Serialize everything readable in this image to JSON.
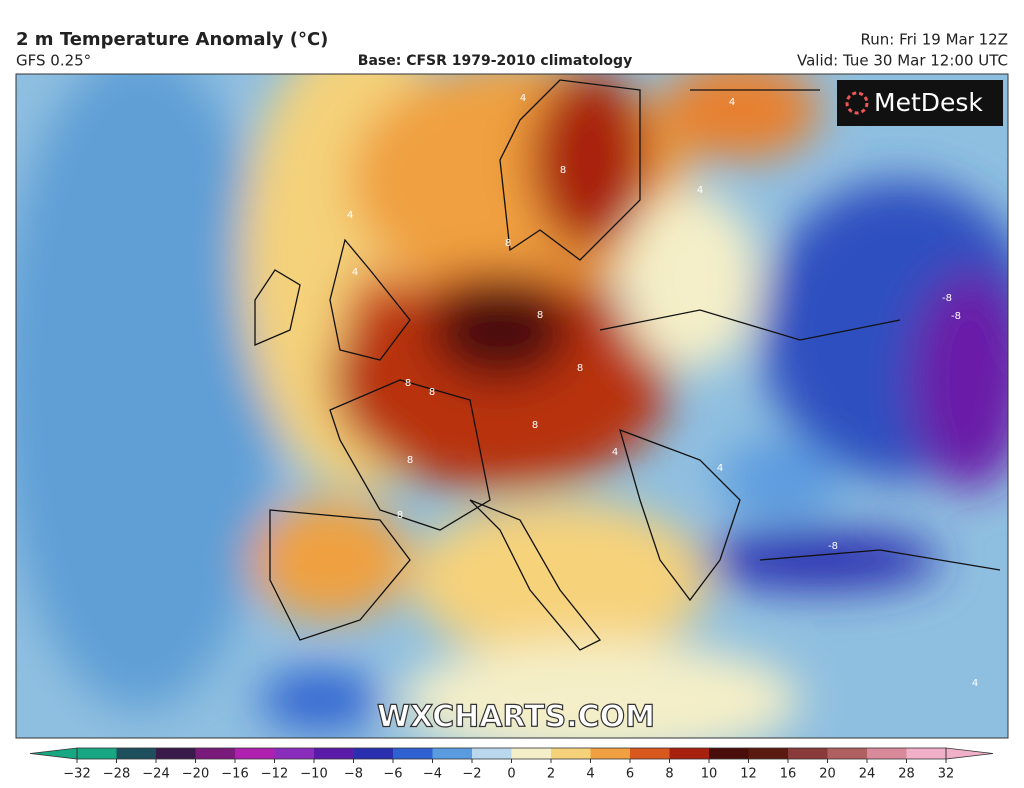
{
  "header": {
    "title": "2 m Temperature Anomaly (°C)",
    "model": "GFS 0.25°",
    "base": "Base: CFSR 1979-2010 climatology",
    "run": "Run: Fri 19 Mar 12Z",
    "valid": "Valid: Tue 30 Mar 12:00 UTC"
  },
  "map": {
    "logo": "MetDesk",
    "watermark": "WXCHARTS.COM",
    "contour_labels": [
      "4",
      "4",
      "4",
      "8",
      "4",
      "4",
      "8",
      "8",
      "8",
      "8",
      "8",
      "8",
      "8",
      "-8",
      "-8",
      "4",
      "4",
      "8",
      "-8",
      "4"
    ]
  },
  "colorbar": {
    "ticks": [
      {
        "value": -32,
        "label": "−32"
      },
      {
        "value": -28,
        "label": "−28"
      },
      {
        "value": -24,
        "label": "−24"
      },
      {
        "value": -20,
        "label": "−20"
      },
      {
        "value": -16,
        "label": "−16"
      },
      {
        "value": -12,
        "label": "−12"
      },
      {
        "value": -10,
        "label": "−10"
      },
      {
        "value": -8,
        "label": "−8"
      },
      {
        "value": -6,
        "label": "−6"
      },
      {
        "value": -4,
        "label": "−4"
      },
      {
        "value": -2,
        "label": "−2"
      },
      0,
      2,
      4,
      6,
      8,
      10,
      12,
      16,
      20,
      24,
      28,
      32
    ],
    "colors": [
      "#17a883",
      "#1e4f5c",
      "#3a1a4a",
      "#7a1a7a",
      "#b020b0",
      "#8a2dbd",
      "#5a1ca8",
      "#2a2fb0",
      "#2f62d0",
      "#5b9be0",
      "#b9d8ee",
      "#f4efc8",
      "#f6d27a",
      "#f0a040",
      "#d8581e",
      "#a8200e",
      "#4a0e0a",
      "#5a1a10",
      "#8a3a3a",
      "#b06060",
      "#d88a9a",
      "#f0b0c8"
    ]
  }
}
